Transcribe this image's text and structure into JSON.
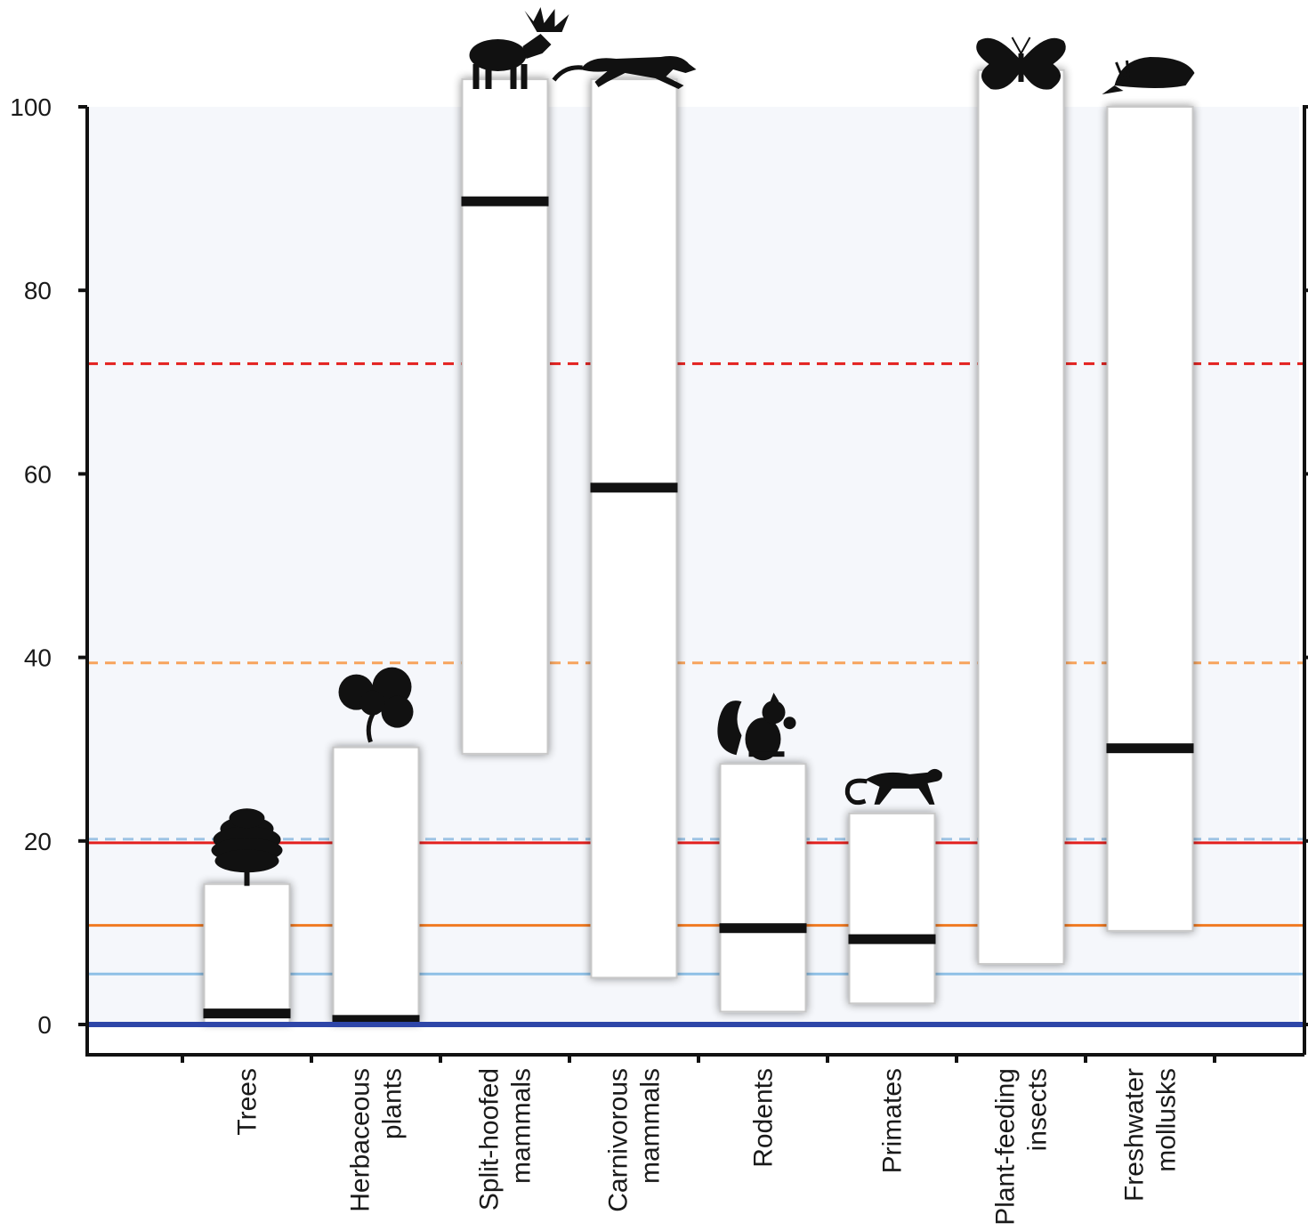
{
  "chart_data": {
    "type": "floating-bar",
    "title": "",
    "xlabel": "",
    "ylabel": "",
    "ylim": [
      0,
      100
    ],
    "yticks": [
      "0",
      "20",
      "40",
      "60",
      "80",
      "100"
    ],
    "grid": false,
    "categories": [
      {
        "label": [
          "Trees"
        ],
        "icon": "tree-icon",
        "low": 0.2,
        "high": 15.3,
        "median": 1.2
      },
      {
        "label": [
          "Herbaceous",
          "plants"
        ],
        "icon": "clover-leaf-icon",
        "low": 0.2,
        "high": 30.2,
        "median": 0.5
      },
      {
        "label": [
          "Split-hoofed",
          "mammals"
        ],
        "icon": "moose-icon",
        "low": 29.5,
        "high": 103,
        "median": 89.7
      },
      {
        "label": [
          "Carnivorous",
          "mammals"
        ],
        "icon": "cougar-icon",
        "low": 5.1,
        "high": 103,
        "median": 58.5
      },
      {
        "label": [
          "Rodents"
        ],
        "icon": "squirrel-icon",
        "low": 1.4,
        "high": 28.4,
        "median": 10.5
      },
      {
        "label": [
          "Primates"
        ],
        "icon": "monkey-icon",
        "low": 2.3,
        "high": 23.0,
        "median": 9.3
      },
      {
        "label": [
          "Plant-feeding",
          "insects"
        ],
        "icon": "butterfly-icon",
        "low": 6.6,
        "high": 104,
        "median": null
      },
      {
        "label": [
          "Freshwater",
          "mollusks"
        ],
        "icon": "snail-icon",
        "low": 10.2,
        "high": 100,
        "median": 30.1
      }
    ],
    "reference_lines": [
      {
        "value": 0,
        "color": "#2e46a8",
        "style": "solid"
      },
      {
        "value": 5.5,
        "color": "#8ec0e6",
        "style": "solid"
      },
      {
        "value": 10.8,
        "color": "#f07a22",
        "style": "solid"
      },
      {
        "value": 19.8,
        "color": "#e3201e",
        "style": "solid"
      },
      {
        "value": 20.2,
        "color": "#9ec4e4",
        "style": "dashed"
      },
      {
        "value": 39.4,
        "color": "#f7a45c",
        "style": "dashed"
      },
      {
        "value": 72,
        "color": "#e3201e",
        "style": "dashed"
      }
    ],
    "colors": {
      "background_band": "#f5f7fb",
      "box_fill": "#ffffff",
      "box_border": "#c8c8c8",
      "median": "#111111",
      "axis": "#111111",
      "icon": "#111111"
    }
  }
}
